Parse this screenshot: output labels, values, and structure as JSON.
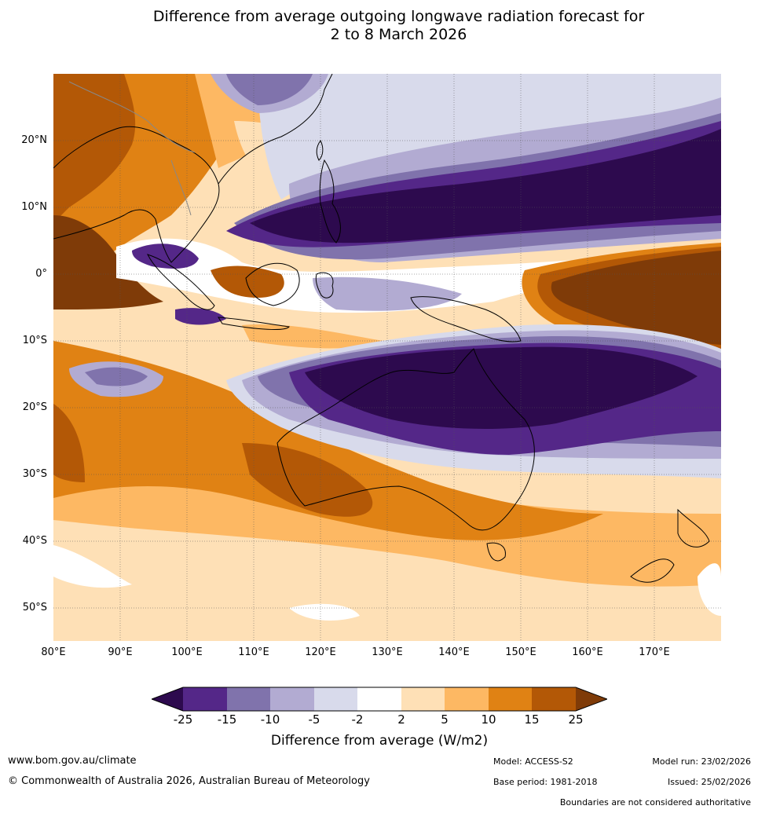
{
  "title": {
    "line1": "Difference from average outgoing longwave radiation forecast for",
    "line2": "2 to 8 March 2026"
  },
  "axes": {
    "latitude_labels": [
      "20°N",
      "10°N",
      "0°",
      "10°S",
      "20°S",
      "30°S",
      "40°S",
      "50°S"
    ],
    "longitude_labels": [
      "80°E",
      "90°E",
      "100°E",
      "110°E",
      "120°E",
      "130°E",
      "140°E",
      "150°E",
      "160°E",
      "170°E"
    ]
  },
  "colorbar": {
    "ticks": [
      "-25",
      "-15",
      "-10",
      "-5",
      "-2",
      "2",
      "5",
      "10",
      "15",
      "25"
    ],
    "colors": [
      "#2d0a4e",
      "#542788",
      "#8073ac",
      "#b2abd2",
      "#d8daeb",
      "#ffffff",
      "#fee0b6",
      "#fdb863",
      "#e08214",
      "#b35806",
      "#7f3b08"
    ],
    "label": "Difference from average (W/m2)"
  },
  "footer": {
    "url": "www.bom.gov.au/climate",
    "copyright": "© Commonwealth of Australia 2026, Australian Bureau of Meteorology",
    "model": "Model: ACCESS-S2",
    "base_period": "Base period: 1981-2018",
    "model_run": "Model run: 23/02/2026",
    "issued": "Issued: 25/02/2026",
    "disclaimer": "Boundaries are not considered authoritative"
  }
}
